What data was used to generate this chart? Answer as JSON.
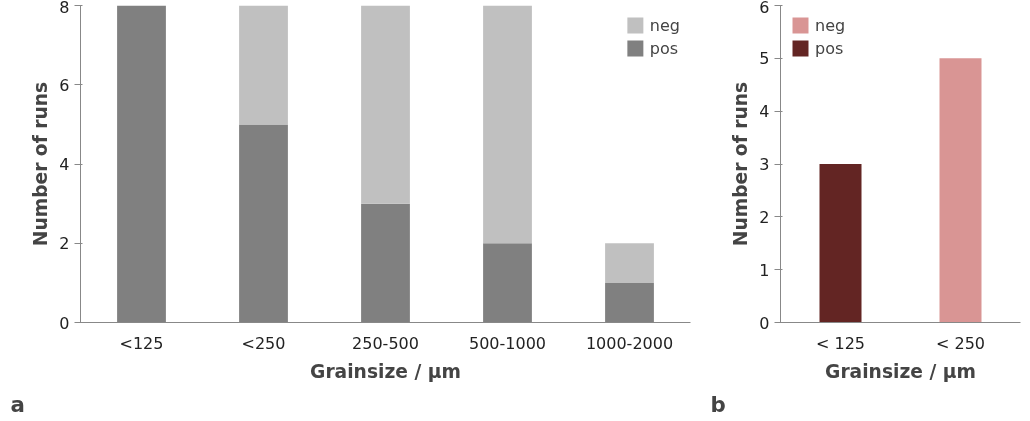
{
  "chart_data": [
    {
      "type": "bar",
      "stacked": true,
      "categories": [
        "<125",
        "<250",
        "250-500",
        "500-1000",
        "1000-2000"
      ],
      "series": [
        {
          "name": "pos",
          "color": "#808080",
          "values": [
            8,
            5,
            3,
            2,
            1
          ]
        },
        {
          "name": "neg",
          "color": "#c0c0c0",
          "values": [
            0,
            3,
            5,
            6,
            1
          ]
        }
      ],
      "xlabel": "Grainsize / µm",
      "ylabel": "Number of runs",
      "ylim": [
        0,
        8
      ],
      "yticks": [
        0,
        2,
        4,
        6,
        8
      ],
      "legend": "top right",
      "grid": false,
      "annotations": [
        "a"
      ]
    },
    {
      "type": "bar",
      "stacked": true,
      "categories": [
        "< 125",
        "< 250"
      ],
      "series": [
        {
          "name": "pos",
          "color": "#632523",
          "values": [
            3,
            null
          ]
        },
        {
          "name": "neg",
          "color": "#d99594",
          "values": [
            null,
            5
          ]
        }
      ],
      "xlabel": "Grainsize / µm",
      "ylabel": "Number of runs",
      "ylim": [
        0,
        6
      ],
      "yticks": [
        0,
        1,
        2,
        3,
        4,
        5,
        6
      ],
      "legend": "top left",
      "grid": false,
      "annotations": [
        "b"
      ]
    }
  ]
}
